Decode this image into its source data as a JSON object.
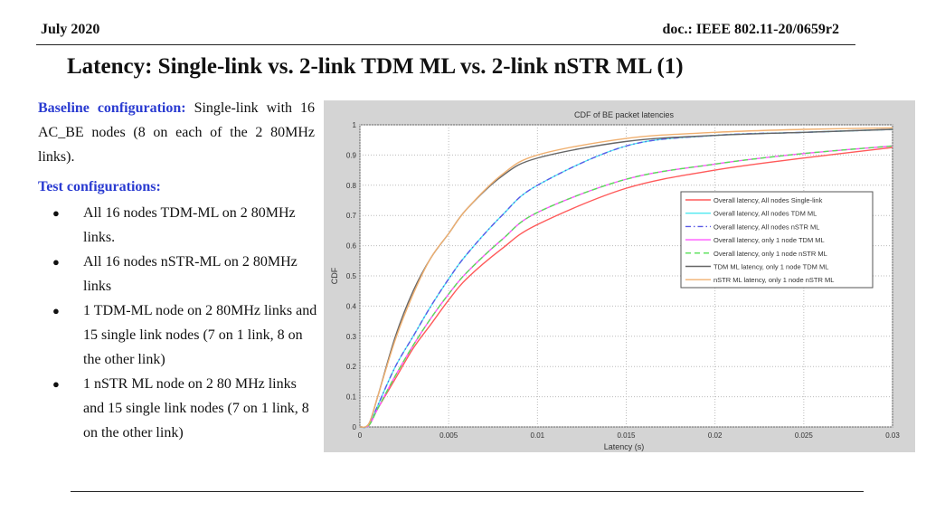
{
  "header": {
    "date": "July 2020",
    "doc": "doc.: IEEE 802.11-20/0659r2"
  },
  "title": "Latency: Single-link vs.  2-link TDM ML vs. 2-link nSTR ML (1)",
  "left": {
    "baseline_label": "Baseline  configuration:",
    "baseline_text": "Single-link with 16 AC_BE nodes (8 on each of the 2 80MHz links).",
    "test_label": "Test configurations:",
    "bullets": [
      "All 16 nodes TDM-ML on 2 80MHz links.",
      "All 16 nodes nSTR-ML on 2 80MHz links",
      "1 TDM-ML node on 2 80MHz links and 15 single link nodes (7 on 1 link, 8 on the other link)",
      "1 nSTR ML node on 2 80 MHz links and 15 single link nodes (7 on 1 link,  8 on the other link)"
    ]
  },
  "chart_data": {
    "type": "line",
    "title": "CDF of BE packet latencies",
    "xlabel": "Latency (s)",
    "ylabel": "CDF",
    "xlim": [
      0,
      0.03
    ],
    "ylim": [
      0,
      1
    ],
    "xticks": [
      "0",
      "0.005",
      "0.01",
      "0.015",
      "0.02",
      "0.025",
      "0.03"
    ],
    "yticks": [
      "0",
      "0.1",
      "0.2",
      "0.3",
      "0.4",
      "0.5",
      "0.6",
      "0.7",
      "0.8",
      "0.9",
      "1"
    ],
    "grid": true,
    "legend_position": "right-middle",
    "x": [
      0,
      0.0005,
      0.001,
      0.002,
      0.003,
      0.004,
      0.005,
      0.006,
      0.008,
      0.01,
      0.015,
      0.02,
      0.025,
      0.03
    ],
    "series": [
      {
        "name": "Overall latency, All nodes Single-link",
        "color": "#ff5a5a",
        "style": "solid",
        "values": [
          0,
          0.005,
          0.06,
          0.16,
          0.26,
          0.34,
          0.42,
          0.49,
          0.59,
          0.67,
          0.79,
          0.85,
          0.89,
          0.925
        ]
      },
      {
        "name": "Overall latency, All nodes TDM ML",
        "color": "#4ee8f0",
        "style": "solid",
        "values": [
          0,
          0.005,
          0.07,
          0.2,
          0.3,
          0.4,
          0.49,
          0.57,
          0.7,
          0.8,
          0.93,
          0.965,
          0.975,
          0.985
        ]
      },
      {
        "name": "Overall latency, All nodes nSTR ML",
        "color": "#5a5ae6",
        "style": "dashdot",
        "values": [
          0,
          0.005,
          0.07,
          0.2,
          0.3,
          0.4,
          0.49,
          0.57,
          0.7,
          0.8,
          0.93,
          0.965,
          0.975,
          0.985
        ]
      },
      {
        "name": "Overall latency, only 1 node TDM ML",
        "color": "#ff55ff",
        "style": "solid",
        "values": [
          0,
          0.005,
          0.06,
          0.17,
          0.27,
          0.36,
          0.44,
          0.51,
          0.62,
          0.71,
          0.82,
          0.87,
          0.905,
          0.93
        ]
      },
      {
        "name": "Overall latency, only 1 node nSTR ML",
        "color": "#55e055",
        "style": "dashed",
        "values": [
          0,
          0.005,
          0.06,
          0.17,
          0.27,
          0.36,
          0.44,
          0.51,
          0.62,
          0.71,
          0.82,
          0.87,
          0.905,
          0.93
        ]
      },
      {
        "name": "TDM ML latency, only 1 node TDM ML",
        "color": "#666666",
        "style": "solid",
        "values": [
          0,
          0.01,
          0.1,
          0.3,
          0.45,
          0.56,
          0.64,
          0.72,
          0.83,
          0.89,
          0.945,
          0.965,
          0.975,
          0.985
        ]
      },
      {
        "name": "nSTR ML latency, only 1 node nSTR ML",
        "color": "#f0b070",
        "style": "solid",
        "values": [
          0,
          0.01,
          0.1,
          0.29,
          0.44,
          0.56,
          0.64,
          0.72,
          0.835,
          0.9,
          0.955,
          0.975,
          0.985,
          0.99
        ]
      }
    ]
  }
}
